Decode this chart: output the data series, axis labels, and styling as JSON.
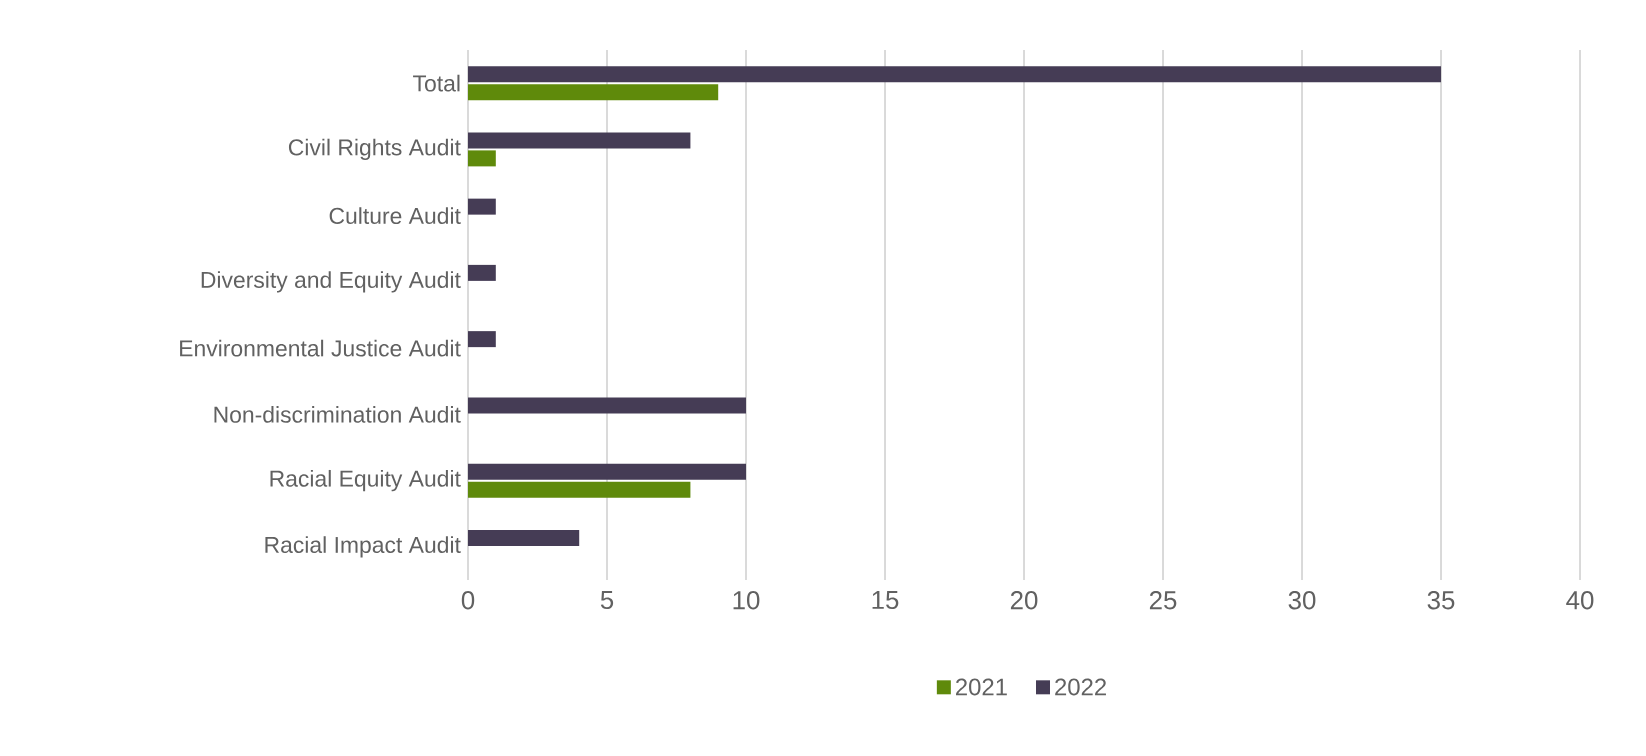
{
  "chart_data": {
    "type": "bar",
    "orientation": "horizontal",
    "categories": [
      "Total",
      "Civil Rights Audit",
      "Culture Audit",
      "Diversity and Equity Audit",
      "Environmental Justice Audit",
      "Non-discrimination Audit",
      "Racial Equity Audit",
      "Racial Impact Audit"
    ],
    "series": [
      {
        "name": "2021",
        "color": "#5f8a0b",
        "values": [
          9,
          1,
          null,
          null,
          null,
          null,
          8,
          null
        ]
      },
      {
        "name": "2022",
        "color": "#453c55",
        "values": [
          35,
          8,
          1,
          1,
          1,
          10,
          10,
          4
        ]
      }
    ],
    "xlim": [
      0,
      40
    ],
    "xticks": [
      0,
      5,
      10,
      15,
      20,
      25,
      30,
      35,
      40
    ],
    "grid": "x",
    "legend": "bottom"
  }
}
